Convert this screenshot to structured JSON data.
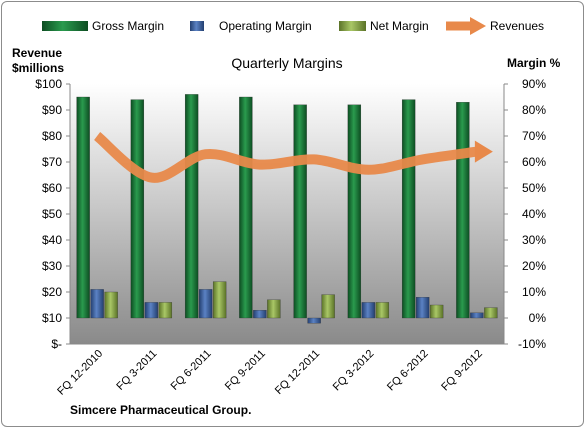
{
  "chart_data": {
    "type": "bar",
    "title": "Quarterly Margins",
    "categories": [
      "FQ 12-2010",
      "FQ 3-2011",
      "FQ 6-2011",
      "FQ 9-2011",
      "FQ 12-2011",
      "FQ 3-2012",
      "FQ 6-2012",
      "FQ 9-2012"
    ],
    "series": [
      {
        "name": "Gross Margin",
        "axis": "right",
        "color": "#1e7a3c",
        "values": [
          85,
          84,
          86,
          85,
          82,
          82,
          84,
          83
        ]
      },
      {
        "name": "Operating Margin",
        "axis": "right",
        "color": "#3a5f9e",
        "values": [
          11,
          6,
          11,
          3,
          -2,
          6,
          8,
          2
        ]
      },
      {
        "name": "Net Margin",
        "axis": "right",
        "color": "#8aa84a",
        "values": [
          10,
          6,
          14,
          7,
          9,
          6,
          5,
          4
        ]
      },
      {
        "name": "Revenues",
        "axis": "left",
        "type": "line",
        "color": "#e8894a",
        "values": [
          80,
          64,
          73,
          69,
          71,
          67,
          71,
          74
        ]
      }
    ],
    "left_axis": {
      "title_line1": "Revenue",
      "title_line2": "$millions",
      "min": 0,
      "max": 100,
      "step": 10,
      "tick_labels": [
        "$-",
        "$10",
        "$20",
        "$30",
        "$40",
        "$50",
        "$60",
        "$70",
        "$80",
        "$90",
        "$100"
      ]
    },
    "right_axis": {
      "title": "Margin %",
      "min": -10,
      "max": 90,
      "step": 10,
      "tick_labels": [
        "-10%",
        "0%",
        "10%",
        "20%",
        "30%",
        "40%",
        "50%",
        "60%",
        "70%",
        "80%",
        "90%"
      ]
    },
    "legend_position": "top",
    "grid": false,
    "source": "Simcere Pharmaceutical Group."
  }
}
